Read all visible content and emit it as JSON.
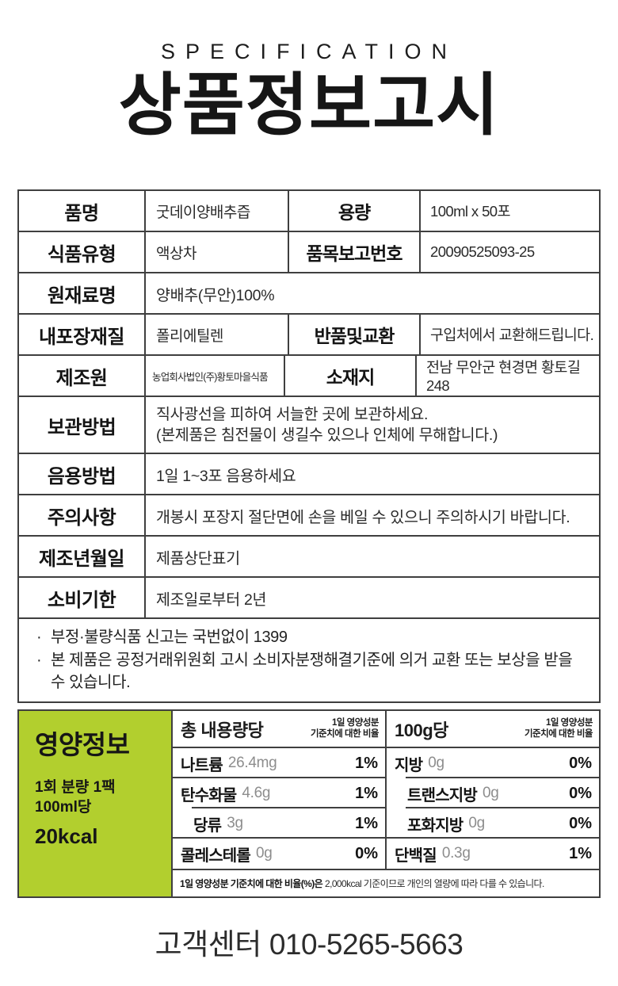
{
  "header": {
    "eyebrow": "SPECIFICATION",
    "title": "상품정보고시"
  },
  "spec_table": {
    "rows": [
      {
        "label1": "품명",
        "value1": "굿데이양배추즙",
        "label2": "용량",
        "value2": "100ml x 50포"
      },
      {
        "label1": "식품유형",
        "value1": "액상차",
        "label2": "품목보고번호",
        "value2": "20090525093-25"
      },
      {
        "label1": "원재료명",
        "value1": "양배추(무안)100%"
      },
      {
        "label1": "내포장재질",
        "value1": "폴리에틸렌",
        "label2": "반품및교환",
        "value2": "구입처에서 교환해드립니다."
      },
      {
        "label1": "제조원",
        "value1": "농업회사법인(주)황토마을식품",
        "label2": "소재지",
        "value2": "전남 무안군 현경면 황토길 248"
      },
      {
        "label1": "보관방법",
        "value1": "직사광선을 피하여 서늘한 곳에 보관하세요.\n(본제품은 침전물이 생길수 있으나 인체에 무해합니다.)"
      },
      {
        "label1": "음용방법",
        "value1": "1일 1~3포 음용하세요"
      },
      {
        "label1": "주의사항",
        "value1": "개봉시 포장지 절단면에 손을 베일 수 있으니 주의하시기 바랍니다."
      },
      {
        "label1": "제조년월일",
        "value1": "제품상단표기"
      },
      {
        "label1": "소비기한",
        "value1": "제조일로부터 2년"
      }
    ],
    "notes": [
      {
        "bullet": "·",
        "text": "부정·불량식품 신고는 국번없이 1399"
      },
      {
        "bullet": "·",
        "text": "본 제품은 공정거래위원회 고시 소비자분쟁해결기준에 의거 교환 또는 보상을 받을 수 있습니다."
      }
    ]
  },
  "nutrition": {
    "panel": {
      "title": "영양정보",
      "serving": "1회 분량 1팩\n100ml당",
      "calories": "20kcal",
      "bg_color": "#b2cf2e"
    },
    "col_left": {
      "header": "총 내용량당",
      "header_note": "1일 영양성분\n기준치에 대한 비율",
      "rows": [
        {
          "name": "나트륨",
          "amount": "26.4mg",
          "dv": "1%"
        },
        {
          "name": "탄수화물",
          "amount": "4.6g",
          "dv": "1%"
        },
        {
          "name": "당류",
          "amount": "3g",
          "dv": "1%"
        },
        {
          "name": "콜레스테롤",
          "amount": "0g",
          "dv": "0%"
        }
      ]
    },
    "col_right": {
      "header": "100g당",
      "header_note": "1일 영양성분\n기준치에 대한 비율",
      "rows": [
        {
          "name": "지방",
          "amount": "0g",
          "dv": "0%"
        },
        {
          "name": "트랜스지방",
          "amount": "0g",
          "dv": "0%"
        },
        {
          "name": "포화지방",
          "amount": "0g",
          "dv": "0%"
        },
        {
          "name": "단백질",
          "amount": "0.3g",
          "dv": "1%"
        }
      ]
    },
    "footnote_bold": "1일 영양성분 기준치에 대한 비율(%)은",
    "footnote_rest": "2,000kcal 기준이므로 개인의 열량에 따라 다를 수 있습니다."
  },
  "footer": {
    "label": "고객센터",
    "phone": "010-5265-5663"
  }
}
